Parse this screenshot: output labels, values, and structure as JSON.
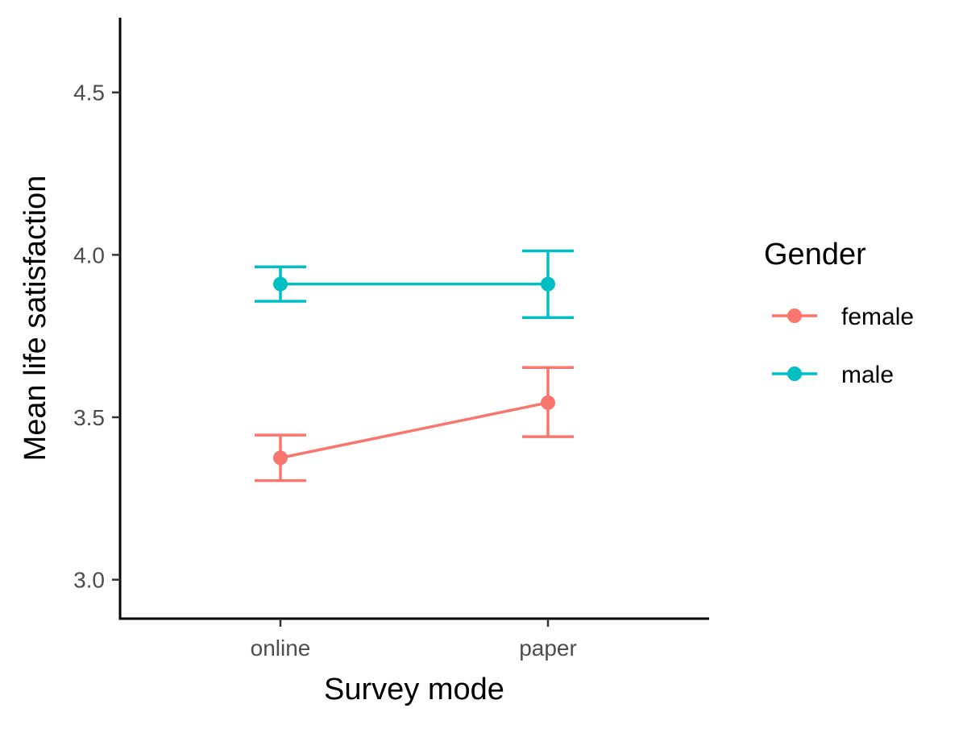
{
  "chart_data": {
    "type": "line",
    "title": "",
    "xlabel": "Survey mode",
    "ylabel": "Mean life satisfaction",
    "categories": [
      "online",
      "paper"
    ],
    "ylim": [
      2.88,
      4.73
    ],
    "yticks": [
      3.0,
      3.5,
      4.0,
      4.5
    ],
    "ytick_labels": [
      "3.0",
      "3.5",
      "4.0",
      "4.5"
    ],
    "grid": false,
    "error_bars": true,
    "legend": {
      "title": "Gender",
      "position": "right"
    },
    "series": [
      {
        "name": "female",
        "color": "#F8766D",
        "values": [
          3.375,
          3.545
        ],
        "lower": [
          3.305,
          3.44
        ],
        "upper": [
          3.445,
          3.653
        ]
      },
      {
        "name": "male",
        "color": "#00BFC4",
        "values": [
          3.91,
          3.91
        ],
        "lower": [
          3.857,
          3.807
        ],
        "upper": [
          3.963,
          4.012
        ]
      }
    ]
  }
}
